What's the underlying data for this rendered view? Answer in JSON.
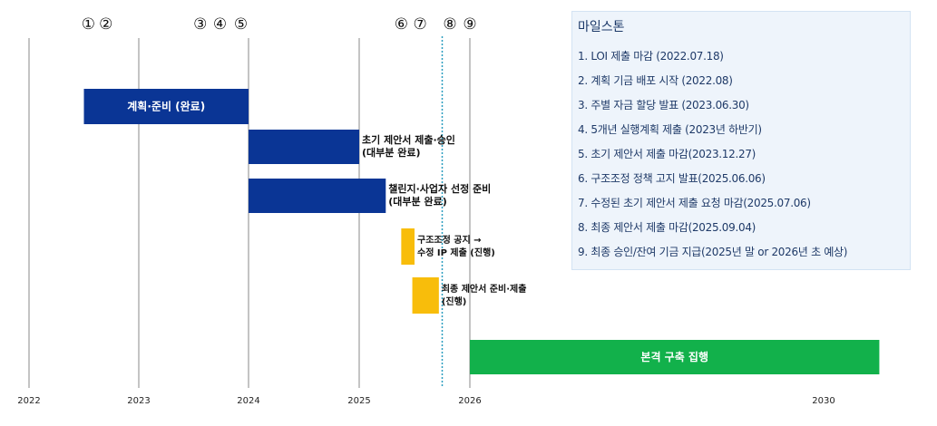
{
  "chart_data": {
    "type": "gantt",
    "xticks": [
      2022,
      2023,
      2024,
      2025,
      2026,
      2030
    ],
    "xlim": [
      2022,
      2030
    ],
    "grid": true,
    "tasks": [
      {
        "name": "계획·준비 (완료)",
        "start": 2022.5,
        "end": 2024.0,
        "color": "#0a3595",
        "label_position": "inside"
      },
      {
        "name": "초기 제안서 제출·승인\n(대부분 완료)",
        "start": 2024.0,
        "end": 2025.0,
        "color": "#0a3595",
        "label_position": "right"
      },
      {
        "name": "챌린지·사업자 선정 준비\n(대부분 완료)",
        "start": 2024.0,
        "end": 2025.24,
        "color": "#0a3595",
        "label_position": "right"
      },
      {
        "name": "구조조정 공지 →\n수정 IP 제출 (진행)",
        "start": 2025.38,
        "end": 2025.5,
        "color": "#f8bd0b",
        "label_position": "right"
      },
      {
        "name": "최종 제안서 준비·제출\n(진행)",
        "start": 2025.48,
        "end": 2025.72,
        "color": "#f8bd0b",
        "label_position": "right"
      },
      {
        "name": "본격 구축 집행",
        "start": 2026.0,
        "end": 2030.63,
        "color": "#12b14b",
        "label_position": "inside"
      }
    ],
    "milestones": [
      {
        "label": "①",
        "x": 2022.54
      },
      {
        "label": "②",
        "x": 2022.7
      },
      {
        "label": "③",
        "x": 2023.56
      },
      {
        "label": "④",
        "x": 2023.74
      },
      {
        "label": "⑤",
        "x": 2023.93
      },
      {
        "label": "⑥",
        "x": 2025.38
      },
      {
        "label": "⑦",
        "x": 2025.55
      },
      {
        "label": "⑧",
        "x": 2025.82
      },
      {
        "label": "⑨",
        "x": 2026.0
      }
    ],
    "current_line": {
      "x": 2025.75,
      "color": "#2a9dbf"
    },
    "milestone_box": {
      "title": "마일스톤",
      "items": [
        "1. LOI 제출 마감 (2022.07.18)",
        "2. 계획 기금 배포 시작 (2022.08)",
        "3. 주별 자금 할당 발표 (2023.06.30)",
        "4. 5개년 실행계획 제출 (2023년 하반기)",
        "5. 초기 제안서 제출 마감(2023.12.27)",
        "6. 구조조정 정책 고지 발표(2025.06.06)",
        "7. 수정된 초기 제안서 제출 요청 마감(2025.07.06)",
        "8. 최종 제안서 제출 마감(2025.09.04)",
        "9. 최종 승인/잔여 기금 지급(2025년 말 or 2026년 초 예상)"
      ]
    }
  }
}
